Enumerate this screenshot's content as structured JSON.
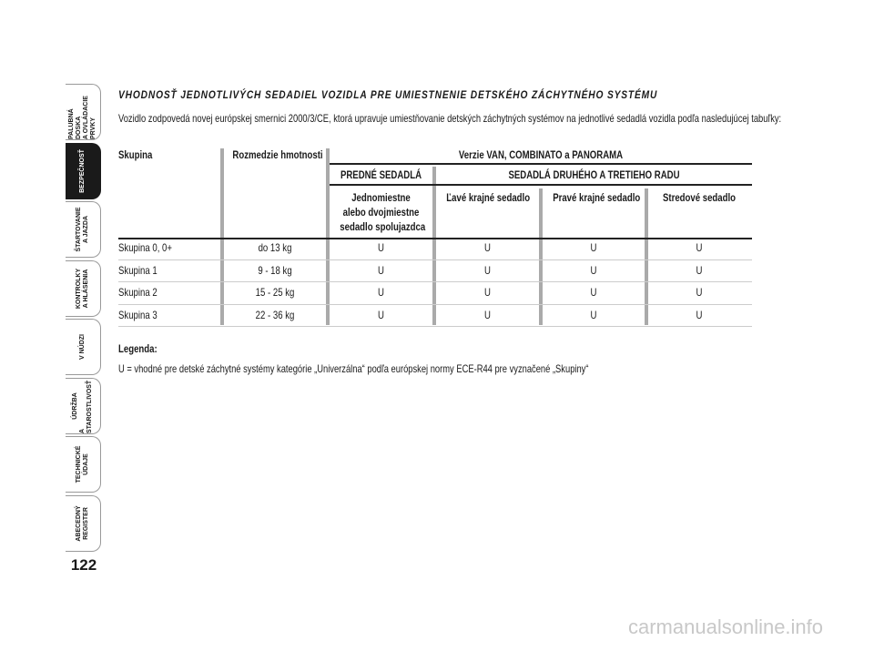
{
  "sidebar": {
    "tabs": [
      [
        "PALUBNÁ DOSKA",
        "A OVLÁDACIE PRVKY"
      ],
      [
        "BEZPEČNOSŤ"
      ],
      [
        "ŠTARTOVANIE",
        "A JAZDA"
      ],
      [
        "KONTROLKY",
        "A HLÁSENIA"
      ],
      [
        "V NÚDZI"
      ],
      [
        "ÚDRŽBA",
        "A STAROSTLIVOSŤ"
      ],
      [
        "TECHNICKÉ",
        "ÚDAJE"
      ],
      [
        "ABECEDNÝ",
        "REGISTER"
      ]
    ]
  },
  "page_number": "122",
  "title": "VHODNOSŤ JEDNOTLIVÝCH SEDADIEL VOZIDLA PRE UMIESTNENIE DETSKÉHO ZÁCHYTNÉHO SYSTÉMU",
  "intro": "Vozidlo zodpovedá novej európskej smernici 2000/3/CE, ktorá upravuje umiestňovanie detských záchytných systémov na jednotlivé sedadlá vozidla podľa nasledujúcej tabuľky:",
  "table": {
    "columns": [
      "Skupina",
      "Rozmedzie hmotnosti"
    ],
    "version": "Verzie VAN, COMBINATO a PANORAMA",
    "groups": [
      "PREDNÉ SEDADLÁ",
      "SEDADLÁ DRUHÉHO A TRETIEHO RADU"
    ],
    "seats": [
      [
        "Jednomiestne",
        "alebo dvojmiestne",
        "sedadlo spolujazdca"
      ],
      [
        "Ľavé krajné sedadlo"
      ],
      [
        "Pravé krajné sedadlo"
      ],
      [
        "Stredové sedadlo"
      ]
    ],
    "rows": [
      [
        "Skupina 0, 0+",
        "do 13 kg",
        "U",
        "U",
        "U",
        "U"
      ],
      [
        "Skupina 1",
        "9 - 18 kg",
        "U",
        "U",
        "U",
        "U"
      ],
      [
        "Skupina 2",
        "15 - 25 kg",
        "U",
        "U",
        "U",
        "U"
      ],
      [
        "Skupina 3",
        "22 - 36 kg",
        "U",
        "U",
        "U",
        "U"
      ]
    ]
  },
  "legend": {
    "title": "Legenda:",
    "text": "U = vhodné pre detské záchytné systémy kategórie „Univerzálna“ podľa európskej normy ECE-R44 pre vyznačené „Skupiny“"
  },
  "watermark": "carmanualsonline.info"
}
